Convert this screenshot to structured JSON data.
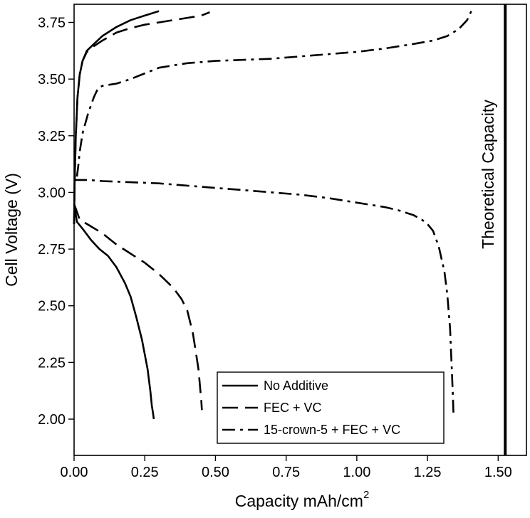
{
  "chart_data": {
    "type": "line",
    "title": "",
    "xlabel": "Capacity mAh/cm",
    "xlabel_superscript": "2",
    "ylabel": "Cell Voltage (V)",
    "xlim": [
      0.0,
      1.6
    ],
    "ylim": [
      1.84,
      3.83
    ],
    "xticks": [
      0.0,
      0.25,
      0.5,
      0.75,
      1.0,
      1.25,
      1.5
    ],
    "xtick_labels": [
      "0.00",
      "0.25",
      "0.50",
      "0.75",
      "1.00",
      "1.25",
      "1.50"
    ],
    "yticks": [
      2.0,
      2.25,
      2.5,
      2.75,
      3.0,
      3.25,
      3.5,
      3.75
    ],
    "ytick_labels": [
      "2.00",
      "2.25",
      "2.50",
      "2.75",
      "3.00",
      "3.25",
      "3.50",
      "3.75"
    ],
    "grid": false,
    "legend_position": "bottom-right",
    "annotation": {
      "text": "Theoretical Capacity",
      "x": 1.525
    },
    "series": [
      {
        "name": "No Additive",
        "style": "solid",
        "charge": {
          "x": [
            0.0,
            0.002,
            0.006,
            0.012,
            0.02,
            0.03,
            0.045,
            0.07,
            0.1,
            0.15,
            0.2,
            0.25,
            0.3
          ],
          "y": [
            2.86,
            3.05,
            3.25,
            3.42,
            3.52,
            3.58,
            3.625,
            3.655,
            3.69,
            3.73,
            3.76,
            3.78,
            3.8
          ]
        },
        "discharge": {
          "x": [
            0.0,
            0.01,
            0.03,
            0.06,
            0.09,
            0.12,
            0.15,
            0.18,
            0.2,
            0.22,
            0.24,
            0.26,
            0.27,
            0.275,
            0.28,
            0.282
          ],
          "y": [
            2.95,
            2.87,
            2.84,
            2.79,
            2.75,
            2.72,
            2.67,
            2.6,
            2.54,
            2.45,
            2.35,
            2.22,
            2.12,
            2.06,
            2.02,
            2.0
          ]
        }
      },
      {
        "name": "FEC + VC",
        "style": "dashed",
        "charge": {
          "x": [
            0.0,
            0.002,
            0.006,
            0.012,
            0.02,
            0.03,
            0.045,
            0.07,
            0.1,
            0.15,
            0.2,
            0.25,
            0.3,
            0.35,
            0.4,
            0.45,
            0.48
          ],
          "y": [
            2.86,
            3.05,
            3.25,
            3.42,
            3.52,
            3.58,
            3.62,
            3.645,
            3.67,
            3.705,
            3.725,
            3.74,
            3.75,
            3.76,
            3.77,
            3.78,
            3.795
          ]
        },
        "discharge": {
          "x": [
            0.0,
            0.02,
            0.06,
            0.1,
            0.15,
            0.2,
            0.25,
            0.3,
            0.35,
            0.38,
            0.4,
            0.42,
            0.43,
            0.44,
            0.445,
            0.45,
            0.452
          ],
          "y": [
            2.95,
            2.88,
            2.85,
            2.82,
            2.77,
            2.73,
            2.69,
            2.64,
            2.58,
            2.53,
            2.48,
            2.38,
            2.3,
            2.22,
            2.15,
            2.08,
            2.04
          ]
        }
      },
      {
        "name": "15-crown-5 + FEC + VC",
        "style": "dashdot",
        "charge": {
          "x": [
            0.01,
            0.015,
            0.02,
            0.03,
            0.05,
            0.07,
            0.085,
            0.1,
            0.15,
            0.2,
            0.3,
            0.4,
            0.5,
            0.6,
            0.7,
            0.8,
            0.9,
            1.0,
            1.1,
            1.2,
            1.27,
            1.32,
            1.36,
            1.39,
            1.405
          ],
          "y": [
            3.07,
            3.12,
            3.18,
            3.26,
            3.35,
            3.42,
            3.46,
            3.47,
            3.48,
            3.5,
            3.55,
            3.57,
            3.58,
            3.585,
            3.59,
            3.6,
            3.61,
            3.62,
            3.635,
            3.655,
            3.67,
            3.69,
            3.72,
            3.76,
            3.8
          ]
        },
        "discharge": {
          "x": [
            0.0,
            0.05,
            0.1,
            0.2,
            0.3,
            0.4,
            0.5,
            0.6,
            0.7,
            0.8,
            0.9,
            1.0,
            1.1,
            1.15,
            1.2,
            1.23,
            1.25,
            1.27,
            1.29,
            1.31,
            1.32,
            1.33,
            1.335,
            1.34,
            1.342
          ],
          "y": [
            3.055,
            3.055,
            3.05,
            3.045,
            3.04,
            3.03,
            3.02,
            3.01,
            3.0,
            2.99,
            2.975,
            2.955,
            2.935,
            2.92,
            2.9,
            2.88,
            2.86,
            2.83,
            2.76,
            2.65,
            2.55,
            2.4,
            2.25,
            2.1,
            2.02
          ]
        }
      }
    ]
  }
}
